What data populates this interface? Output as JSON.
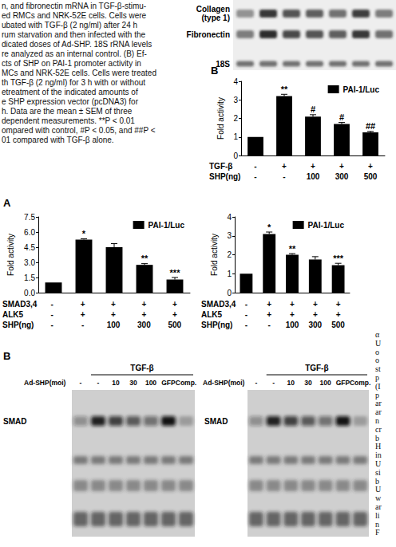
{
  "caption_lines": [
    "n, and fibronectin mRNA in TGF-β-stimu-",
    "ed RMCs and NRK-52E cells. Cells were",
    "ubated with TGF-β (2 ng/ml) after 24 h",
    "rum starvation and then infected with the",
    "dicated doses of Ad-SHP. 18S rRNA levels",
    "re analyzed as an internal control. (B) Ef-",
    "cts of SHP on PAI-1 promoter activity in",
    "MCs and NRK-52E cells. Cells were treated",
    "th TGF-β (2 ng/ml) for 3 h with or without",
    "etreatment of the indicated amounts of",
    "e SHP expression vector (pcDNA3) for",
    "h. Data are the mean ± SEM of three",
    "dependent measurements. **P < 0.01",
    "ompared with control, #P < 0.05, and ##P <",
    "01 compared with TGF-β alone."
  ],
  "gel_top": {
    "rows": [
      "Collagen (type 1)",
      "Fibronectin",
      "18S"
    ]
  },
  "panel_letters": [
    "B",
    "A",
    "B"
  ],
  "chart_data": [
    {
      "type": "bar",
      "y_label": "Fold activity",
      "series": [
        {
          "name": "PAI-1/Luc",
          "color": "#000000",
          "values": [
            1,
            3.2,
            2.1,
            1.7,
            1.25
          ],
          "errors": [
            0,
            0.1,
            0.1,
            0.08,
            0.05
          ]
        }
      ],
      "annotations": [
        null,
        "**",
        "#",
        "#",
        "##"
      ],
      "ylim": [
        0,
        4
      ],
      "yticks": [
        0,
        1,
        2,
        3,
        4
      ],
      "grid": false,
      "legend": "top-right",
      "tick_labels": "y",
      "condition_rows": [
        {
          "label": "TGF-β",
          "values": [
            "-",
            "+",
            "+",
            "+",
            "+"
          ]
        },
        {
          "label": "SHP(ng)",
          "values": [
            "-",
            "-",
            "100",
            "300",
            "500"
          ]
        }
      ]
    },
    {
      "type": "bar",
      "y_label": "Fold activity",
      "series": [
        {
          "name": "PAI-1/Luc",
          "color": "#000000",
          "values": [
            1,
            5.25,
            4.5,
            2.75,
            1.3
          ],
          "errors": [
            0,
            0.08,
            0.35,
            0.12,
            0.2
          ]
        }
      ],
      "annotations": [
        null,
        "*",
        null,
        "**",
        "***"
      ],
      "ylim": [
        0,
        7.5
      ],
      "yticks": [
        {
          "value": 0,
          "label": "0.0"
        },
        1.5,
        {
          "value": 3,
          "label": "3.0"
        },
        4.5,
        {
          "value": 6,
          "label": "6.0"
        },
        7.5
      ],
      "grid": false,
      "legend": "top-right",
      "tick_labels": "y",
      "condition_rows": [
        {
          "label": "SMAD3,4",
          "values": [
            "-",
            "+",
            "+",
            "+",
            "+"
          ]
        },
        {
          "label": "ALK5",
          "values": [
            "-",
            "+",
            "+",
            "+",
            "+"
          ]
        },
        {
          "label": "SHP(ng)",
          "values": [
            "-",
            "-",
            "100",
            "300",
            "500"
          ]
        }
      ]
    },
    {
      "type": "bar",
      "y_label": "Fold activity",
      "series": [
        {
          "name": "PAI-1/Luc",
          "color": "#000000",
          "values": [
            1,
            3.1,
            2.0,
            1.75,
            1.45
          ],
          "errors": [
            0,
            0.1,
            0.06,
            0.15,
            0.1
          ]
        }
      ],
      "annotations": [
        null,
        "*",
        "**",
        null,
        "***"
      ],
      "ylim": [
        0,
        4
      ],
      "yticks": [
        0,
        1,
        2,
        3,
        4
      ],
      "grid": false,
      "legend": "top-right",
      "tick_labels": "y",
      "condition_rows": [
        {
          "label": "SMAD3,4",
          "values": [
            "-",
            "+",
            "+",
            "+",
            "+"
          ]
        },
        {
          "label": "ALK5",
          "values": [
            "-",
            "+",
            "+",
            "+",
            "+"
          ]
        },
        {
          "label": "SHP(ng)",
          "values": [
            "-",
            "-",
            "100",
            "300",
            "500"
          ]
        }
      ]
    }
  ],
  "emsa": {
    "gels": [
      {
        "treatment": "TGF-β",
        "lane_label": "Ad-SHP(moi)",
        "lanes": [
          "-",
          "-",
          "10",
          "30",
          "100",
          "GFP",
          "Comp."
        ],
        "band_label": "SMAD"
      },
      {
        "treatment": "TGF-β",
        "lane_label": "Ad-SHP(moi)",
        "lanes": [
          "-",
          "-",
          "10",
          "30",
          "100",
          "GFP",
          "Comp."
        ],
        "band_label": "SMAD"
      }
    ]
  },
  "side_text_lines": [
    "α",
    "U",
    "o",
    "o",
    "st",
    "p",
    "(I",
    "p",
    "ar",
    "ar",
    "n",
    "cr",
    "b",
    "H",
    "in",
    "U",
    "si",
    "b",
    "U",
    "w",
    "ar",
    "li",
    "n",
    "F"
  ]
}
